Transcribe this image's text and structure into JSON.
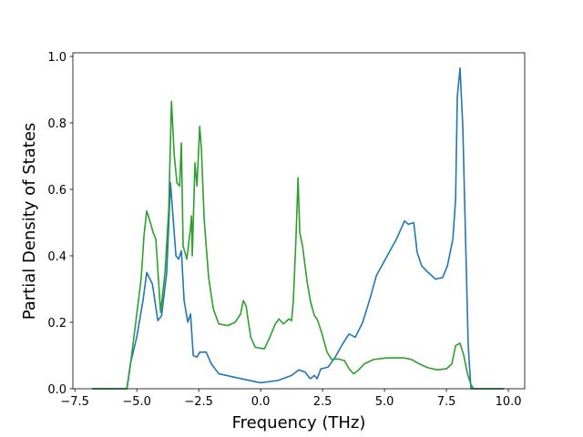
{
  "chart_data": {
    "type": "line",
    "xlabel": "Frequency (THz)",
    "ylabel": "Partial Density of States",
    "xlim": [
      -7.58,
      10.66
    ],
    "ylim": [
      0,
      1.011
    ],
    "xticks": [
      {
        "value": -7.5,
        "label": "−7.5"
      },
      {
        "value": -5.0,
        "label": "−5.0"
      },
      {
        "value": -2.5,
        "label": "−2.5"
      },
      {
        "value": 0.0,
        "label": "0.0"
      },
      {
        "value": 2.5,
        "label": "2.5"
      },
      {
        "value": 5.0,
        "label": "5.0"
      },
      {
        "value": 7.5,
        "label": "7.5"
      },
      {
        "value": 10.0,
        "label": "10.0"
      }
    ],
    "yticks": [
      {
        "value": 0.0,
        "label": "0.0"
      },
      {
        "value": 0.2,
        "label": "0.2"
      },
      {
        "value": 0.4,
        "label": "0.4"
      },
      {
        "value": 0.6,
        "label": "0.6"
      },
      {
        "value": 0.8,
        "label": "0.8"
      },
      {
        "value": 1.0,
        "label": "1.0"
      }
    ],
    "series": [
      {
        "color": "#1f77b4",
        "x": [
          -6.8,
          -5.4,
          -5.26,
          -5.0,
          -4.74,
          -4.6,
          -4.37,
          -4.15,
          -4.0,
          -3.79,
          -3.64,
          -3.42,
          -3.31,
          -3.2,
          -3.09,
          -2.94,
          -2.83,
          -2.72,
          -2.57,
          -2.46,
          -2.2,
          -1.99,
          -1.69,
          -0.96,
          0.0,
          0.7,
          1.25,
          1.54,
          1.8,
          2.0,
          2.17,
          2.28,
          2.43,
          2.72,
          3.01,
          3.31,
          3.57,
          3.82,
          4.12,
          4.41,
          4.67,
          5.11,
          5.48,
          5.81,
          5.96,
          6.18,
          6.32,
          6.5,
          6.76,
          7.06,
          7.35,
          7.54,
          7.76,
          7.87,
          7.94,
          8.05,
          8.16,
          8.27,
          8.38,
          8.49,
          9.82
        ],
        "values": [
          0,
          0,
          0.074,
          0.156,
          0.27,
          0.35,
          0.315,
          0.205,
          0.22,
          0.35,
          0.62,
          0.4,
          0.39,
          0.415,
          0.265,
          0.2,
          0.225,
          0.1,
          0.095,
          0.11,
          0.11,
          0.075,
          0.045,
          0.033,
          0.018,
          0.025,
          0.04,
          0.057,
          0.05,
          0.03,
          0.04,
          0.03,
          0.06,
          0.065,
          0.095,
          0.135,
          0.165,
          0.155,
          0.2,
          0.27,
          0.34,
          0.4,
          0.45,
          0.505,
          0.495,
          0.5,
          0.41,
          0.37,
          0.35,
          0.33,
          0.335,
          0.37,
          0.45,
          0.57,
          0.88,
          0.965,
          0.79,
          0.46,
          0.13,
          0,
          0
        ]
      },
      {
        "color": "#2ca02c",
        "x": [
          -6.8,
          -5.4,
          -5.26,
          -5.0,
          -4.82,
          -4.71,
          -4.6,
          -4.45,
          -4.34,
          -4.23,
          -4.04,
          -3.86,
          -3.71,
          -3.6,
          -3.49,
          -3.38,
          -3.27,
          -3.2,
          -3.13,
          -2.98,
          -2.83,
          -2.79,
          -2.76,
          -2.65,
          -2.57,
          -2.46,
          -2.39,
          -2.28,
          -2.1,
          -1.91,
          -1.69,
          -1.32,
          -1.03,
          -0.81,
          -0.7,
          -0.59,
          -0.4,
          -0.22,
          0.15,
          0.37,
          0.59,
          0.74,
          0.92,
          1.14,
          1.25,
          1.32,
          1.43,
          1.51,
          1.58,
          1.69,
          1.88,
          2.02,
          2.17,
          2.28,
          2.46,
          2.68,
          2.87,
          3.09,
          3.38,
          3.57,
          3.75,
          3.93,
          4.19,
          4.56,
          5.11,
          5.77,
          6.1,
          6.4,
          6.76,
          7.13,
          7.5,
          7.72,
          7.87,
          8.05,
          8.2,
          8.35,
          8.49,
          8.6,
          9.82
        ],
        "values": [
          0,
          0,
          0.07,
          0.225,
          0.335,
          0.46,
          0.535,
          0.5,
          0.47,
          0.45,
          0.23,
          0.35,
          0.54,
          0.865,
          0.705,
          0.62,
          0.61,
          0.74,
          0.43,
          0.39,
          0.485,
          0.52,
          0.4,
          0.68,
          0.61,
          0.79,
          0.72,
          0.51,
          0.335,
          0.24,
          0.195,
          0.19,
          0.2,
          0.225,
          0.265,
          0.25,
          0.155,
          0.125,
          0.12,
          0.155,
          0.195,
          0.21,
          0.195,
          0.21,
          0.205,
          0.265,
          0.46,
          0.635,
          0.47,
          0.43,
          0.32,
          0.26,
          0.22,
          0.21,
          0.17,
          0.11,
          0.088,
          0.09,
          0.085,
          0.06,
          0.045,
          0.055,
          0.075,
          0.088,
          0.093,
          0.093,
          0.088,
          0.075,
          0.063,
          0.057,
          0.06,
          0.075,
          0.13,
          0.137,
          0.1,
          0.045,
          0.013,
          0,
          0
        ]
      }
    ]
  }
}
